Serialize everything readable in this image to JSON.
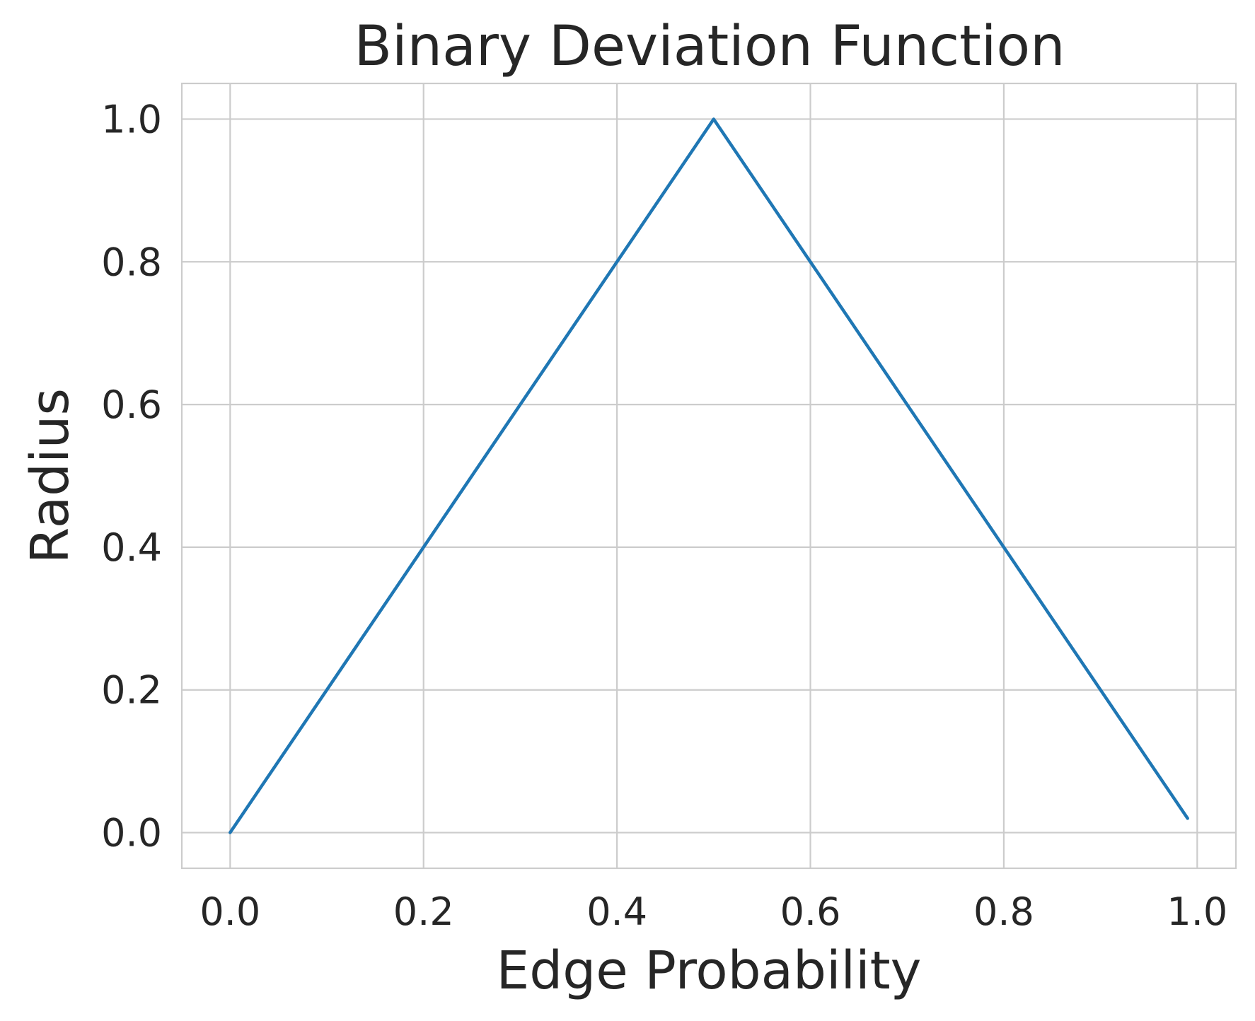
{
  "chart_data": {
    "type": "line",
    "title": "Binary Deviation Function",
    "xlabel": "Edge Probability",
    "ylabel": "Radius",
    "xlim": [
      -0.05,
      1.04
    ],
    "ylim": [
      -0.05,
      1.05
    ],
    "x_ticks": [
      0.0,
      0.2,
      0.4,
      0.6,
      0.8,
      1.0
    ],
    "x_tick_labels": [
      "0.0",
      "0.2",
      "0.4",
      "0.6",
      "0.8",
      "1.0"
    ],
    "y_ticks": [
      0.0,
      0.2,
      0.4,
      0.6,
      0.8,
      1.0
    ],
    "y_tick_labels": [
      "0.0",
      "0.2",
      "0.4",
      "0.6",
      "0.8",
      "1.0"
    ],
    "grid": true,
    "legend": "none",
    "series": [
      {
        "color": "#1f77b4",
        "points": [
          {
            "x": 0.0,
            "y": 0.0
          },
          {
            "x": 0.5,
            "y": 1.0
          },
          {
            "x": 0.99,
            "y": 0.02
          }
        ]
      }
    ]
  }
}
